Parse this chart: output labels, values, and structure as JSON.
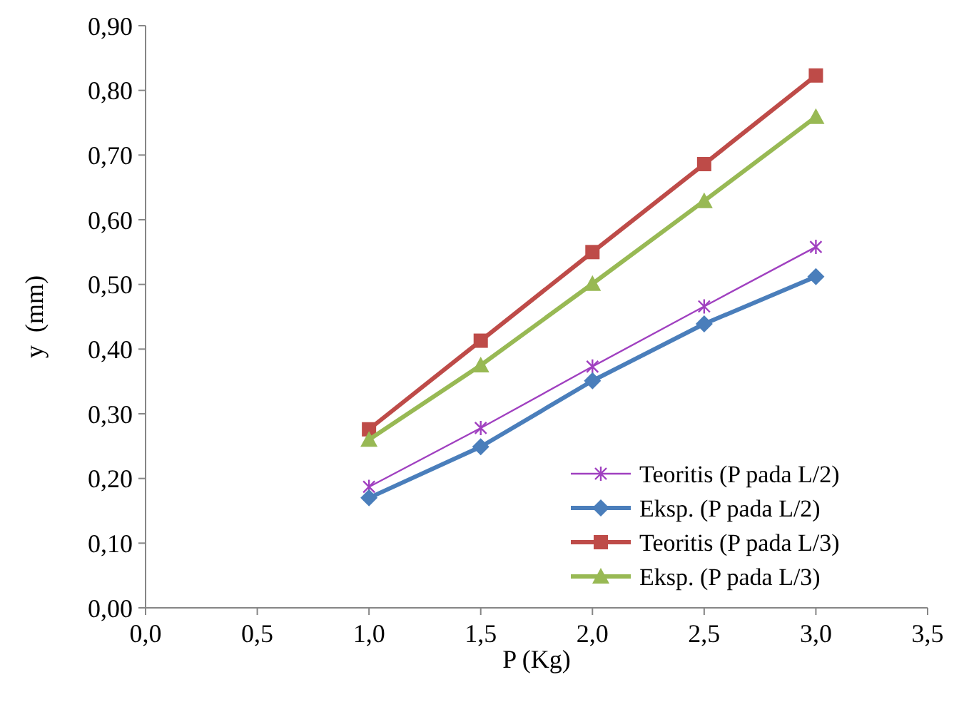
{
  "chart_data": {
    "type": "line",
    "xlabel": "P (Kg)",
    "ylabel": "y  (mm)",
    "x": [
      1.0,
      1.5,
      2.0,
      2.5,
      3.0
    ],
    "xlim": [
      0,
      3.5
    ],
    "xticks": [
      {
        "value": 0,
        "label": "0,0"
      },
      {
        "value": 0.5,
        "label": "0,5"
      },
      {
        "value": 1,
        "label": "1,0"
      },
      {
        "value": 1.5,
        "label": "1,5"
      },
      {
        "value": 2,
        "label": "2,0"
      },
      {
        "value": 2.5,
        "label": "2,5"
      },
      {
        "value": 3,
        "label": "3,0"
      },
      {
        "value": 3.5,
        "label": "3,5"
      }
    ],
    "ylim": [
      0,
      0.9
    ],
    "yticks": [
      {
        "value": 0,
        "label": "0,00"
      },
      {
        "value": 0.1,
        "label": "0,10"
      },
      {
        "value": 0.2,
        "label": "0,20"
      },
      {
        "value": 0.3,
        "label": "0,30"
      },
      {
        "value": 0.4,
        "label": "0,40"
      },
      {
        "value": 0.5,
        "label": "0,50"
      },
      {
        "value": 0.6,
        "label": "0,60"
      },
      {
        "value": 0.7,
        "label": "0,70"
      },
      {
        "value": 0.8,
        "label": "0,80"
      },
      {
        "value": 0.9,
        "label": "0,90"
      }
    ],
    "grid": false,
    "legend": "bottom right",
    "line_style": "solid",
    "series": [
      {
        "name": "Teoritis (P pada L/2)",
        "color": "#a040c0",
        "marker": "cross",
        "values": [
          0.187,
          0.278,
          0.373,
          0.466,
          0.558
        ]
      },
      {
        "name": "Eksp. (P pada L/2)",
        "color": "#4a7ebb",
        "marker": "diamond",
        "values": [
          0.17,
          0.249,
          0.351,
          0.439,
          0.512
        ]
      },
      {
        "name": "Teoritis (P pada L/3)",
        "color": "#be4b48",
        "marker": "square",
        "values": [
          0.276,
          0.413,
          0.55,
          0.686,
          0.823
        ]
      },
      {
        "name": "Eksp. (P pada L/3)",
        "color": "#98b954",
        "marker": "triangle",
        "values": [
          0.26,
          0.375,
          0.501,
          0.629,
          0.759
        ]
      }
    ]
  }
}
